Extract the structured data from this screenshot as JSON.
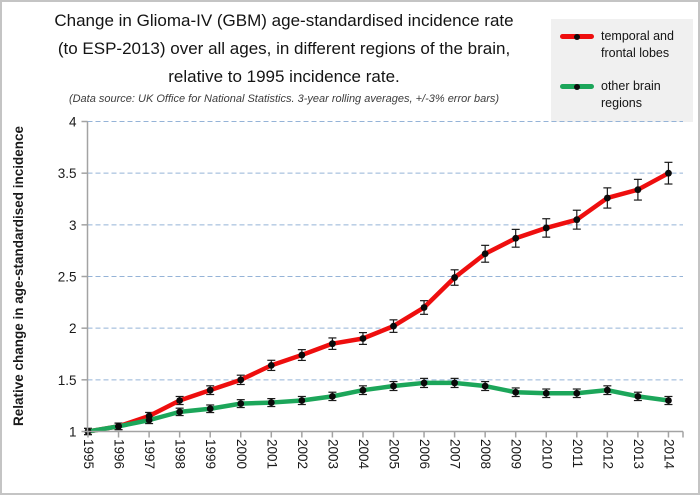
{
  "title": {
    "line1": "Change in Glioma-IV (GBM) age-standardised incidence rate",
    "line2": "(to ESP-2013) over all ages, in different regions of the brain,",
    "line3": "relative to 1995 incidence rate."
  },
  "subtitle": "(Data source: UK Office for National Statistics.  3-year rolling averages, +/-3% error bars)",
  "legend": {
    "items": [
      {
        "label": "temporal and frontal lobes",
        "color": "#ee0e0e"
      },
      {
        "label": "other brain regions",
        "color": "#1ca65a"
      }
    ]
  },
  "chart_data": {
    "type": "line",
    "x": [
      1995,
      1996,
      1997,
      1998,
      1999,
      2000,
      2001,
      2002,
      2003,
      2004,
      2005,
      2006,
      2007,
      2008,
      2009,
      2010,
      2011,
      2012,
      2013,
      2014
    ],
    "series": [
      {
        "name": "temporal and frontal lobes",
        "color": "#ee0e0e",
        "values": [
          1.0,
          1.05,
          1.15,
          1.3,
          1.4,
          1.5,
          1.64,
          1.74,
          1.85,
          1.9,
          2.02,
          2.2,
          2.49,
          2.72,
          2.87,
          2.97,
          3.05,
          3.26,
          3.34,
          3.5
        ]
      },
      {
        "name": "other brain regions",
        "color": "#1ca65a",
        "values": [
          1.0,
          1.05,
          1.11,
          1.19,
          1.22,
          1.27,
          1.28,
          1.3,
          1.34,
          1.4,
          1.44,
          1.47,
          1.47,
          1.44,
          1.38,
          1.37,
          1.37,
          1.4,
          1.34,
          1.3
        ]
      }
    ],
    "ylabel": "Relative change in age-standardised incidence",
    "xlabel": "",
    "ylim": [
      1,
      4
    ],
    "yticks": [
      1,
      1.5,
      2,
      2.5,
      3,
      3.5,
      4
    ],
    "error_bar_pct": 3,
    "marker": "black circle",
    "grid": "horizontal dashed",
    "legend_position": "top-right",
    "colors": {
      "gridline": "#95b3d7",
      "axis": "#a3a3a3",
      "tick_text": "#1a1a1a",
      "error_bar": "#1a1a1a",
      "marker_fill": "#0a0a0a",
      "legend_bg": "#f0f0f0"
    }
  }
}
